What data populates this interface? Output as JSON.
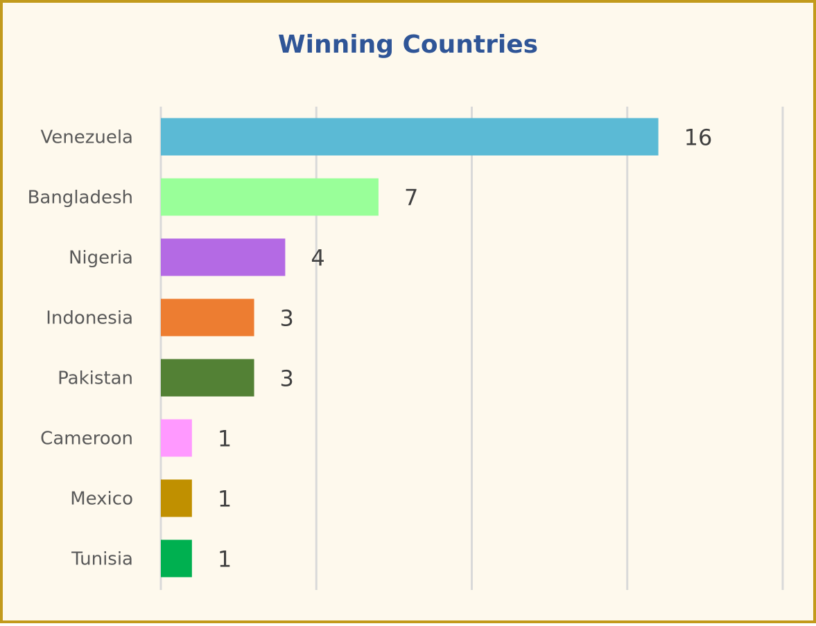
{
  "chart_data": {
    "type": "bar",
    "orientation": "horizontal",
    "title": "Winning Countries",
    "xlabel": "",
    "ylabel": "",
    "xlim": [
      0,
      20
    ],
    "grid": true,
    "legend": "none",
    "categories": [
      "Venezuela",
      "Bangladesh",
      "Nigeria",
      "Indonesia",
      "Pakistan",
      "Cameroon",
      "Mexico",
      "Tunisia"
    ],
    "values": [
      16,
      7,
      4,
      3,
      3,
      1,
      1,
      1
    ],
    "colors": [
      "#5bbad5",
      "#99ff99",
      "#b46ae4",
      "#ed7d31",
      "#538135",
      "#ff99ff",
      "#c09000",
      "#00b050"
    ]
  },
  "style": {
    "frame_border_color": "#c29a1c",
    "background_color": "#fef9ed",
    "title_color": "#2f5597",
    "gridline_color": "#d9d9d9"
  }
}
